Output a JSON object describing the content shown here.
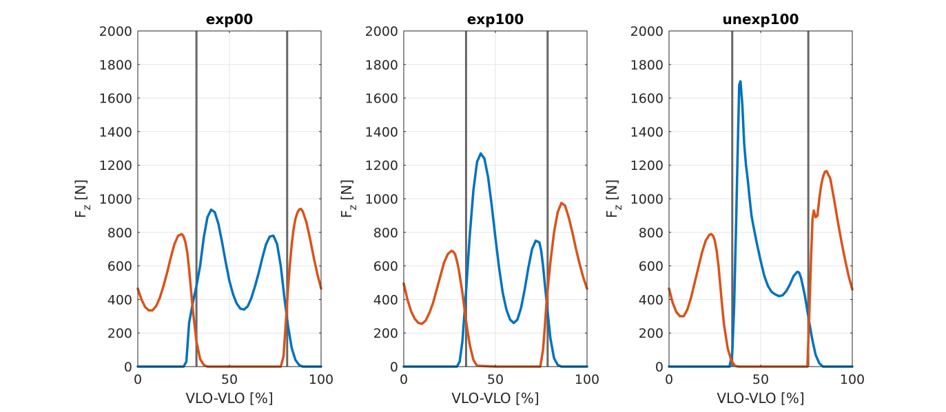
{
  "colors": {
    "series_1": "#0072BD",
    "series_2": "#D95319",
    "event_line": "#666666",
    "grid": "#e6e6e6",
    "axis": "#262626"
  },
  "chart_data": [
    {
      "type": "line",
      "title": "exp00",
      "xlabel": "VLO-VLO [%]",
      "ylabel_main": "F",
      "ylabel_sub": "z",
      "ylabel_unit": " [N]",
      "xlim": [
        0,
        100
      ],
      "ylim": [
        0,
        2000
      ],
      "xticks": [
        0,
        50,
        100
      ],
      "yticks": [
        0,
        200,
        400,
        600,
        800,
        1000,
        1200,
        1400,
        1600,
        1800,
        2000
      ],
      "grid": true,
      "vlines": [
        32,
        81.5
      ],
      "series": [
        {
          "color": "#0072BD",
          "x": [
            0,
            25,
            26.5,
            28,
            30,
            32,
            34,
            36,
            38,
            40,
            42,
            44,
            46,
            48,
            50,
            52,
            54,
            56,
            58,
            60,
            62,
            64,
            66,
            68,
            70,
            72,
            74,
            76,
            78,
            80,
            82,
            84,
            86,
            88,
            90,
            92,
            100
          ],
          "y": [
            0,
            0,
            30,
            260,
            380,
            480,
            600,
            770,
            890,
            935,
            920,
            850,
            740,
            620,
            510,
            430,
            375,
            345,
            340,
            360,
            410,
            480,
            560,
            650,
            730,
            775,
            780,
            730,
            600,
            410,
            240,
            110,
            40,
            10,
            0,
            0,
            0
          ]
        },
        {
          "color": "#D95319",
          "x": [
            0,
            2,
            4,
            6,
            8,
            10,
            12,
            14,
            16,
            18,
            20,
            22,
            24,
            25,
            26,
            27,
            28,
            29,
            30,
            32,
            34,
            36,
            38,
            40,
            50,
            60,
            70,
            78,
            79.5,
            81,
            82,
            83,
            84,
            85,
            86,
            87,
            88,
            89,
            90,
            92,
            94,
            96,
            98,
            100
          ],
          "y": [
            465,
            400,
            355,
            335,
            335,
            360,
            410,
            480,
            560,
            650,
            730,
            780,
            790,
            775,
            740,
            680,
            580,
            460,
            340,
            150,
            45,
            10,
            0,
            0,
            0,
            0,
            0,
            0,
            60,
            300,
            470,
            610,
            730,
            820,
            880,
            915,
            935,
            940,
            925,
            860,
            760,
            650,
            550,
            465
          ]
        }
      ]
    },
    {
      "type": "line",
      "title": "exp100",
      "xlabel": "VLO-VLO [%]",
      "ylabel_main": "F",
      "ylabel_sub": "z",
      "ylabel_unit": " [N]",
      "xlim": [
        0,
        100
      ],
      "ylim": [
        0,
        2000
      ],
      "xticks": [
        0,
        50,
        100
      ],
      "yticks": [
        0,
        200,
        400,
        600,
        800,
        1000,
        1200,
        1400,
        1600,
        1800,
        2000
      ],
      "grid": true,
      "vlines": [
        34,
        78.5
      ],
      "series": [
        {
          "color": "#0072BD",
          "x": [
            0,
            29,
            30.5,
            32,
            34,
            36,
            38,
            40,
            42,
            44,
            46,
            48,
            50,
            52,
            54,
            56,
            58,
            60,
            62,
            64,
            66,
            68,
            70,
            72,
            74,
            75,
            76,
            78,
            80,
            82,
            84,
            86,
            100
          ],
          "y": [
            0,
            0,
            30,
            150,
            450,
            780,
            1050,
            1220,
            1270,
            1240,
            1130,
            960,
            770,
            590,
            440,
            340,
            280,
            260,
            280,
            350,
            460,
            590,
            700,
            750,
            740,
            690,
            600,
            380,
            170,
            50,
            10,
            0,
            0
          ],
          "color_key": "series_1"
        },
        {
          "color": "#D95319",
          "x": [
            0,
            2,
            4,
            6,
            8,
            10,
            12,
            14,
            16,
            18,
            20,
            22,
            24,
            26,
            27,
            28,
            29,
            30,
            32,
            34,
            36,
            38,
            40,
            50,
            60,
            70,
            74.5,
            76,
            77,
            78,
            80,
            82,
            84,
            86,
            88,
            90,
            92,
            94,
            96,
            98,
            100
          ],
          "y": [
            495,
            400,
            330,
            285,
            260,
            255,
            275,
            320,
            380,
            460,
            540,
            620,
            670,
            690,
            685,
            670,
            630,
            580,
            440,
            270,
            130,
            40,
            5,
            0,
            0,
            0,
            0,
            100,
            240,
            400,
            620,
            800,
            920,
            975,
            960,
            890,
            800,
            700,
            610,
            530,
            465
          ]
        }
      ]
    },
    {
      "type": "line",
      "title": "unexp100",
      "xlabel": "VLO-VLO [%]",
      "ylabel_main": "F",
      "ylabel_sub": "z",
      "ylabel_unit": " [N]",
      "xlim": [
        0,
        100
      ],
      "ylim": [
        0,
        2000
      ],
      "xticks": [
        0,
        50,
        100
      ],
      "yticks": [
        0,
        200,
        400,
        600,
        800,
        1000,
        1200,
        1400,
        1600,
        1800,
        2000
      ],
      "grid": true,
      "vlines": [
        34.5,
        76
      ],
      "series": [
        {
          "color": "#0072BD",
          "x": [
            0,
            33,
            34.5,
            35.5,
            36.5,
            37.5,
            38.3,
            39,
            40,
            41,
            42,
            43,
            44,
            45,
            46,
            48,
            50,
            52,
            54,
            56,
            58,
            60,
            62,
            64,
            66,
            68,
            70,
            71,
            72,
            74,
            76,
            78,
            80,
            82,
            84,
            100
          ],
          "y": [
            0,
            0,
            80,
            350,
            800,
            1300,
            1680,
            1700,
            1560,
            1330,
            1200,
            1110,
            1000,
            900,
            840,
            730,
            630,
            540,
            480,
            445,
            430,
            420,
            425,
            450,
            490,
            540,
            565,
            560,
            530,
            430,
            300,
            170,
            70,
            20,
            0,
            0
          ]
        },
        {
          "color": "#D95319",
          "x": [
            0,
            2,
            4,
            6,
            8,
            10,
            12,
            14,
            16,
            18,
            20,
            22,
            23,
            24,
            25,
            26,
            27,
            28,
            29,
            30,
            32,
            34,
            36,
            38,
            40,
            50,
            60,
            70,
            75.5,
            76.5,
            77.5,
            78.3,
            79,
            80,
            81,
            82,
            83,
            84,
            85,
            86,
            88,
            90,
            92,
            94,
            96,
            98,
            100
          ],
          "y": [
            465,
            380,
            325,
            300,
            300,
            340,
            410,
            500,
            590,
            680,
            750,
            785,
            790,
            780,
            750,
            690,
            600,
            480,
            360,
            250,
            110,
            35,
            5,
            0,
            0,
            0,
            0,
            0,
            0,
            300,
            650,
            880,
            930,
            890,
            900,
            1000,
            1080,
            1130,
            1160,
            1165,
            1120,
            1000,
            870,
            750,
            640,
            540,
            460
          ]
        }
      ]
    }
  ]
}
